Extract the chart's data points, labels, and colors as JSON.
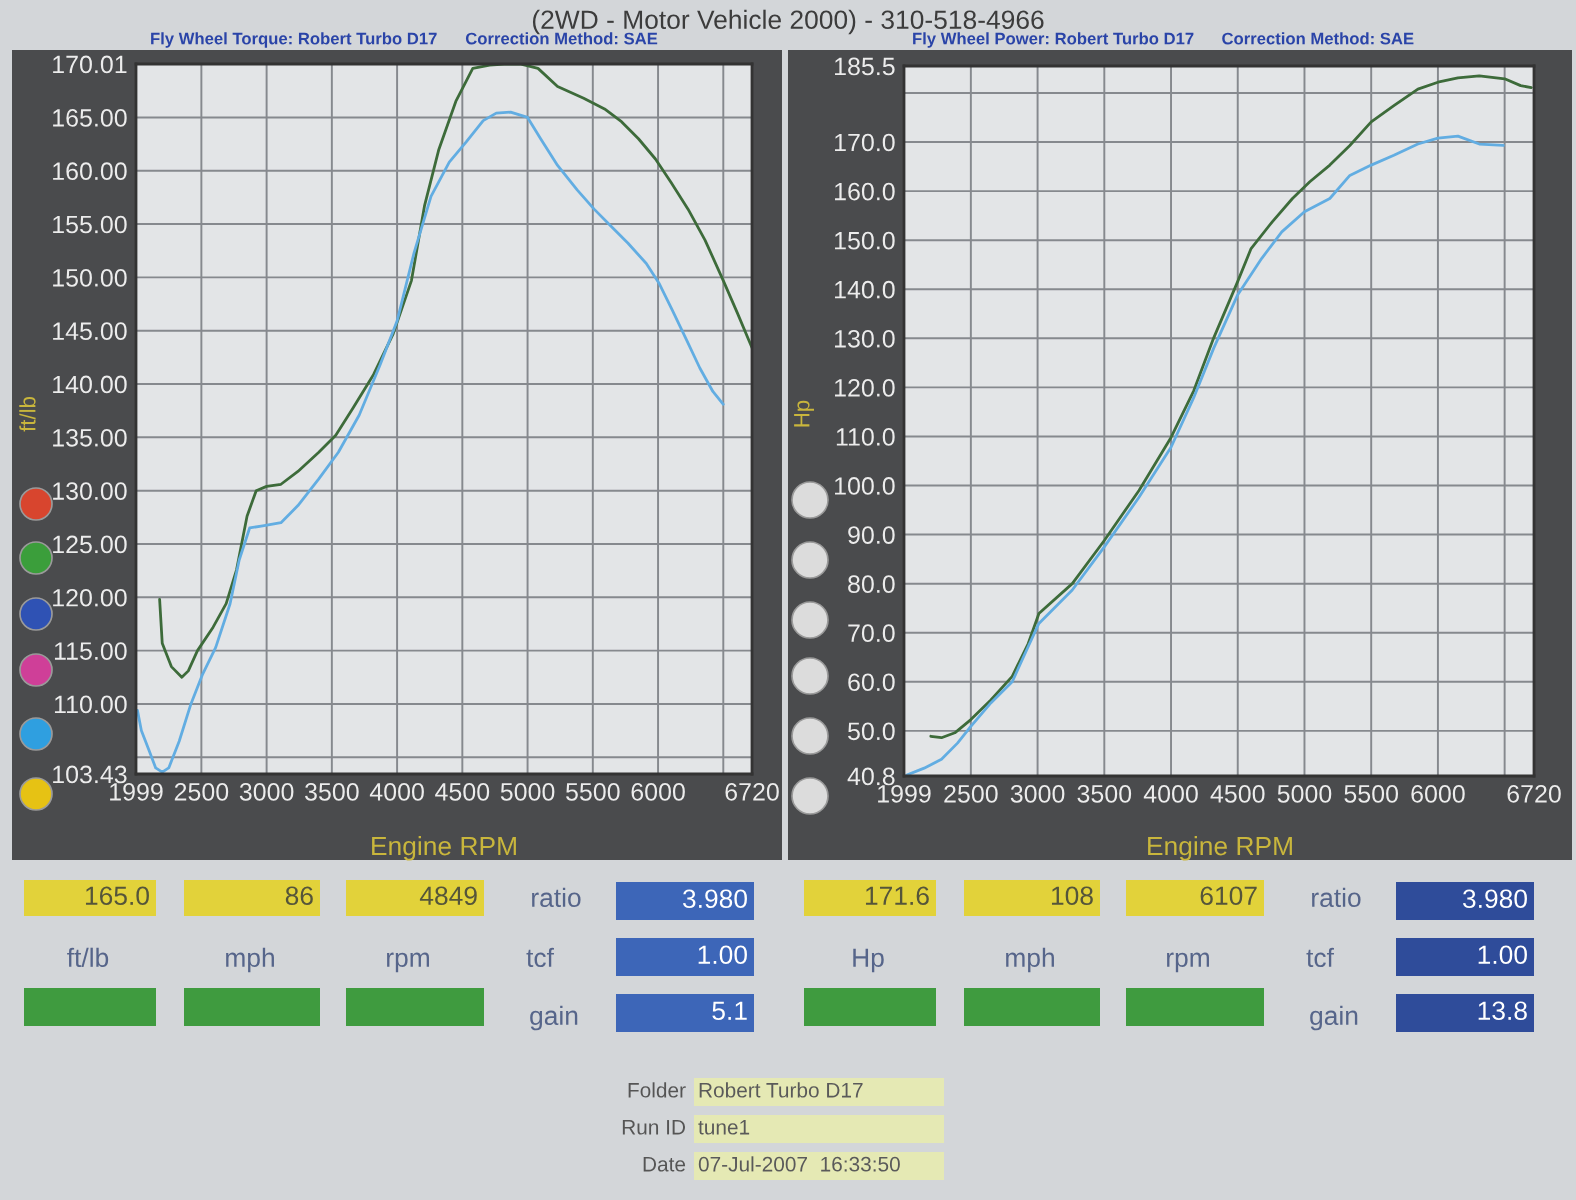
{
  "chart_data": [
    {
      "type": "line",
      "title": "(2WD - Motor Vehicle 2000) - 310-518-4966",
      "subtitle": "Fly Wheel Torque: Robert Turbo D17",
      "xlabel": "Engine RPM",
      "ylabel": "ft/lb",
      "annotations": [
        "Correction Method: SAE",
        "165.0",
        "86",
        "4849",
        "ratio",
        "3.980",
        "ft/lb",
        "mph",
        "rpm",
        "tcf",
        "1.00",
        "gain",
        "5.1"
      ],
      "xlim": [
        1999,
        6720
      ],
      "xticks": [
        1999,
        2500,
        3000,
        3500,
        4000,
        4500,
        5000,
        5500,
        6000,
        {
          "value": 6500,
          "label": null
        },
        6720
      ],
      "ylim": [
        103.43,
        170.01
      ],
      "yticks": [
        103.43,
        {
          "value": 105,
          "label": null
        },
        {
          "value": 110,
          "label": "110.00"
        },
        {
          "value": 115,
          "label": "115.00"
        },
        {
          "value": 120,
          "label": "120.00"
        },
        {
          "value": 125,
          "label": "125.00"
        },
        {
          "value": 130,
          "label": "130.00"
        },
        {
          "value": 135,
          "label": "135.00"
        },
        {
          "value": 140,
          "label": "140.00"
        },
        {
          "value": 145,
          "label": "145.00"
        },
        {
          "value": 150,
          "label": "150.00"
        },
        {
          "value": 155,
          "label": "155.00"
        },
        {
          "value": 160,
          "label": "160.00"
        },
        {
          "value": 165,
          "label": "165.00"
        },
        170.01
      ],
      "grid": true,
      "series": [
        {
          "color": "#3d6b3a",
          "x": [
            2180,
            2200,
            2270,
            2350,
            2400,
            2470,
            2590,
            2690,
            2770,
            2850,
            2920,
            3000,
            3110,
            3240,
            3400,
            3530,
            3660,
            3820,
            3970,
            4110,
            4210,
            4320,
            4450,
            4580,
            4710,
            4820,
            4950,
            5080,
            5230,
            5430,
            5590,
            5720,
            5850,
            5980,
            6100,
            6230,
            6360,
            6500,
            6610,
            6720
          ],
          "values": [
            119.8,
            115.7,
            113.5,
            112.5,
            113.1,
            115.0,
            117.2,
            119.4,
            122.6,
            127.6,
            130.0,
            130.4,
            130.6,
            131.8,
            133.6,
            135.2,
            137.7,
            140.9,
            144.7,
            149.7,
            156.7,
            162.0,
            166.5,
            169.6,
            169.9,
            170.0,
            170.0,
            169.6,
            167.9,
            166.8,
            165.8,
            164.6,
            163.0,
            161.1,
            158.9,
            156.4,
            153.5,
            149.7,
            146.6,
            143.4
          ]
        },
        {
          "color": "#62ade2",
          "x": [
            2010,
            2040,
            2100,
            2150,
            2200,
            2250,
            2330,
            2420,
            2510,
            2610,
            2720,
            2790,
            2870,
            2970,
            3110,
            3240,
            3400,
            3550,
            3710,
            3870,
            4000,
            4130,
            4260,
            4400,
            4530,
            4660,
            4760,
            4870,
            5000,
            5100,
            5230,
            5380,
            5510,
            5640,
            5770,
            5910,
            6010,
            6110,
            6220,
            6320,
            6420,
            6500
          ],
          "values": [
            109.4,
            107.5,
            105.6,
            104.0,
            103.6,
            104.0,
            106.5,
            110.0,
            112.8,
            115.3,
            119.4,
            123.5,
            126.5,
            126.7,
            127.0,
            128.6,
            131.1,
            133.6,
            137.1,
            141.8,
            145.9,
            152.3,
            157.6,
            160.8,
            162.7,
            164.7,
            165.4,
            165.5,
            165.0,
            163.0,
            160.5,
            158.2,
            156.4,
            154.8,
            153.2,
            151.3,
            149.4,
            146.9,
            144.1,
            141.5,
            139.3,
            138.1
          ]
        }
      ]
    },
    {
      "type": "line",
      "subtitle": "Fly Wheel Power: Robert Turbo D17",
      "xlabel": "Engine RPM",
      "ylabel": "Hp",
      "annotations": [
        "Correction Method: SAE",
        "171.6",
        "108",
        "6107",
        "ratio",
        "3.980",
        "Hp",
        "mph",
        "rpm",
        "tcf",
        "1.00",
        "gain",
        "13.8"
      ],
      "xlim": [
        1999,
        6720
      ],
      "xticks": [
        1999,
        2500,
        3000,
        3500,
        4000,
        4500,
        5000,
        5500,
        6000,
        {
          "value": 6500,
          "label": null
        },
        6720
      ],
      "ylim": [
        40.8,
        185.5
      ],
      "yticks": [
        40.8,
        {
          "value": 50,
          "label": "50.0"
        },
        {
          "value": 60,
          "label": "60.0"
        },
        {
          "value": 70,
          "label": "70.0"
        },
        {
          "value": 80,
          "label": "80.0"
        },
        {
          "value": 90,
          "label": "90.0"
        },
        {
          "value": 100,
          "label": "100.0"
        },
        {
          "value": 110,
          "label": "110.0"
        },
        {
          "value": 120,
          "label": "120.0"
        },
        {
          "value": 130,
          "label": "130.0"
        },
        {
          "value": 140,
          "label": "140.0"
        },
        {
          "value": 150,
          "label": "150.0"
        },
        {
          "value": 160,
          "label": "160.0"
        },
        {
          "value": 170,
          "label": "170.0"
        },
        {
          "value": 180,
          "label": null
        },
        185.5
      ],
      "grid": true,
      "series": [
        {
          "color": "#3d6b3a",
          "x": [
            2200,
            2280,
            2380,
            2500,
            2650,
            2810,
            2930,
            3010,
            3260,
            3500,
            3760,
            4000,
            4170,
            4320,
            4500,
            4600,
            4760,
            4910,
            5040,
            5190,
            5340,
            5500,
            5670,
            5850,
            6000,
            6150,
            6310,
            6500,
            6620,
            6700
          ],
          "values": [
            48.9,
            48.6,
            49.6,
            52.3,
            56.3,
            61.1,
            67.8,
            73.9,
            80.0,
            88.8,
            99.0,
            109.8,
            119.3,
            130.1,
            141.6,
            148.3,
            153.8,
            158.5,
            161.9,
            165.3,
            169.3,
            174.1,
            177.4,
            180.8,
            182.2,
            183.1,
            183.5,
            182.9,
            181.5,
            181.1
          ]
        },
        {
          "color": "#62ade2",
          "x": [
            2020,
            2150,
            2280,
            2400,
            2500,
            2650,
            2810,
            2930,
            3010,
            3260,
            3500,
            3760,
            4000,
            4170,
            4320,
            4500,
            4680,
            4830,
            5000,
            5190,
            5340,
            5500,
            5670,
            5850,
            6000,
            6150,
            6310,
            6490
          ],
          "values": [
            41.0,
            42.4,
            44.2,
            47.5,
            50.9,
            55.7,
            60.0,
            67.2,
            71.9,
            78.7,
            87.5,
            97.6,
            107.8,
            117.9,
            128.0,
            138.9,
            146.3,
            151.7,
            155.8,
            158.5,
            163.2,
            165.3,
            167.3,
            169.6,
            170.8,
            171.2,
            169.6,
            169.3
          ]
        }
      ]
    },
    {
      "type": "other",
      "annotations": [
        "Folder",
        "Robert Turbo D17",
        "Run ID",
        "tune1",
        "Date",
        "07-Jul-2007  16:33:50"
      ]
    }
  ]
}
